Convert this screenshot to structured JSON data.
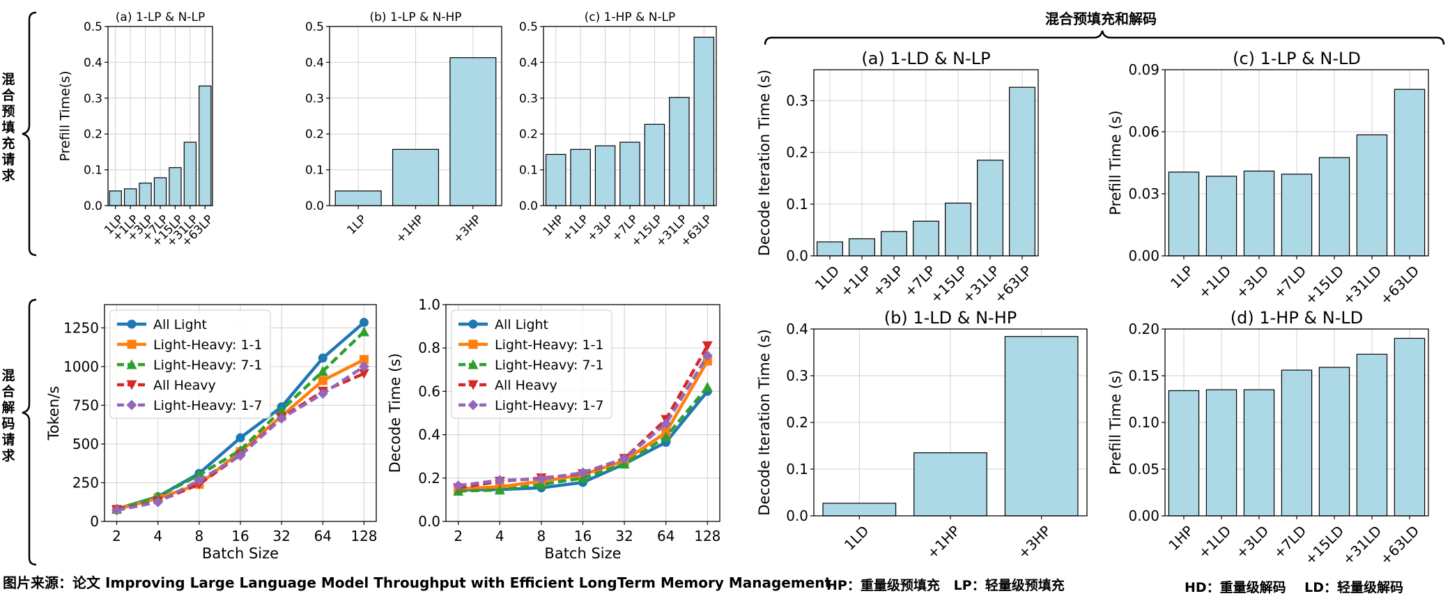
{
  "figure": {
    "source_caption": "图片来源：论文 Improving Large Language Model Throughput with Efficient LongTerm Memory Management",
    "legend_prefill": "HP：重量级预填充   LP：轻量级预填充",
    "legend_decode": "HD：重量级解码    LD：轻量级解码",
    "mixed_header": "混合预填充和解码",
    "side_label_top": "混合预填充请求",
    "side_label_bottom": "混合解码请求"
  },
  "colors": {
    "bar_fill": "#add8e6",
    "bar_edge": "#000000",
    "grid": "#d0d0d0",
    "all_light": "#1f77b4",
    "lh_1_1": "#ff7f0e",
    "lh_7_1": "#2ca02c",
    "all_heavy": "#d62728",
    "lh_1_7": "#9467bd"
  },
  "chart_data": [
    {
      "id": "p1",
      "type": "bar",
      "title": "(a) 1-LP & N-LP",
      "ylabel": "Prefill Time(s)",
      "xlabel": "",
      "categories": [
        "1LP",
        "+1LP",
        "+3LP",
        "+7LP",
        "+15LP",
        "+31LP",
        "+63LP"
      ],
      "values": [
        0.041,
        0.047,
        0.063,
        0.078,
        0.106,
        0.177,
        0.334
      ],
      "ylim": [
        0,
        0.5
      ],
      "yticks": [
        0.0,
        0.1,
        0.2,
        0.3,
        0.4,
        0.5
      ],
      "ytick_labels": [
        "0.0",
        "0.1",
        "0.2",
        "0.3",
        "0.4",
        "0.5"
      ]
    },
    {
      "id": "p2",
      "type": "bar",
      "title": "(b) 1-LP & N-HP",
      "ylabel": "",
      "xlabel": "",
      "categories": [
        "1LP",
        "+1HP",
        "+3HP"
      ],
      "values": [
        0.041,
        0.157,
        0.413
      ],
      "ylim": [
        0,
        0.5
      ],
      "yticks": [
        0.0,
        0.1,
        0.2,
        0.3,
        0.4,
        0.5
      ],
      "ytick_labels": [
        "0.0",
        "0.1",
        "0.2",
        "0.3",
        "0.4",
        "0.5"
      ]
    },
    {
      "id": "p3",
      "type": "bar",
      "title": "(c) 1-HP & N-LP",
      "ylabel": "",
      "xlabel": "",
      "categories": [
        "1HP",
        "+1LP",
        "+3LP",
        "+7LP",
        "+15LP",
        "+31LP",
        "+63LP"
      ],
      "values": [
        0.143,
        0.157,
        0.167,
        0.177,
        0.227,
        0.302,
        0.47
      ],
      "ylim": [
        0,
        0.5
      ],
      "yticks": [
        0.0,
        0.1,
        0.2,
        0.3,
        0.4,
        0.5
      ],
      "ytick_labels": [
        "0.0",
        "0.1",
        "0.2",
        "0.3",
        "0.4",
        "0.5"
      ]
    },
    {
      "id": "q1",
      "type": "line",
      "title": "",
      "ylabel": "Token/s",
      "xlabel": "Batch Size",
      "categories": [
        "2",
        "4",
        "8",
        "16",
        "32",
        "64",
        "128"
      ],
      "ylim": [
        0,
        1400
      ],
      "yticks": [
        0,
        250,
        500,
        750,
        1000,
        1250
      ],
      "ytick_labels": [
        "0",
        "250",
        "500",
        "750",
        "1000",
        "1250"
      ],
      "series": [
        {
          "name": "All Light",
          "values": [
            80,
            160,
            310,
            540,
            740,
            1055,
            1285
          ]
        },
        {
          "name": "Light-Heavy: 1-1",
          "values": [
            78,
            150,
            240,
            450,
            680,
            910,
            1045
          ]
        },
        {
          "name": "Light-Heavy: 7-1",
          "values": [
            80,
            160,
            300,
            460,
            720,
            970,
            1225
          ]
        },
        {
          "name": "All Heavy",
          "values": [
            75,
            130,
            240,
            430,
            670,
            840,
            955
          ]
        },
        {
          "name": "Light-Heavy: 1-7",
          "values": [
            72,
            125,
            265,
            425,
            665,
            825,
            1000
          ]
        }
      ]
    },
    {
      "id": "q2",
      "type": "line",
      "title": "",
      "ylabel": "Decode Time (s)",
      "xlabel": "Batch Size",
      "categories": [
        "2",
        "4",
        "8",
        "16",
        "32",
        "64",
        "128"
      ],
      "ylim": [
        0,
        1.0
      ],
      "yticks": [
        0.0,
        0.2,
        0.4,
        0.6,
        0.8,
        1.0
      ],
      "ytick_labels": [
        "0.0",
        "0.2",
        "0.4",
        "0.6",
        "0.8",
        "1.0"
      ],
      "series": [
        {
          "name": "All Light",
          "values": [
            0.145,
            0.147,
            0.155,
            0.18,
            0.265,
            0.365,
            0.6
          ]
        },
        {
          "name": "Light-Heavy: 1-1",
          "values": [
            0.15,
            0.16,
            0.185,
            0.215,
            0.28,
            0.41,
            0.74
          ]
        },
        {
          "name": "Light-Heavy: 7-1",
          "values": [
            0.14,
            0.145,
            0.17,
            0.2,
            0.265,
            0.39,
            0.62
          ]
        },
        {
          "name": "All Heavy",
          "values": [
            0.155,
            0.185,
            0.2,
            0.22,
            0.29,
            0.47,
            0.81
          ]
        },
        {
          "name": "Light-Heavy: 1-7",
          "values": [
            0.165,
            0.19,
            0.195,
            0.225,
            0.29,
            0.45,
            0.765
          ]
        }
      ]
    },
    {
      "id": "r1",
      "type": "bar",
      "title": "(a) 1-LD & N-LP",
      "ylabel": "Decode Iteration Time (s)",
      "xlabel": "",
      "categories": [
        "1LD",
        "+1LP",
        "+3LP",
        "+7LP",
        "+15LP",
        "+31LP",
        "+63LP"
      ],
      "values": [
        0.027,
        0.033,
        0.047,
        0.067,
        0.102,
        0.185,
        0.326
      ],
      "ylim": [
        0,
        0.36
      ],
      "yticks": [
        0.0,
        0.1,
        0.2,
        0.3
      ],
      "ytick_labels": [
        "0.0",
        "0.1",
        "0.2",
        "0.3"
      ]
    },
    {
      "id": "r2",
      "type": "bar",
      "title": "(c) 1-LP & N-LD",
      "ylabel": "Prefill Time (s)",
      "xlabel": "",
      "categories": [
        "1LP",
        "+1LD",
        "+3LD",
        "+7LD",
        "+15LD",
        "+31LD",
        "+63LD"
      ],
      "values": [
        0.0405,
        0.0385,
        0.041,
        0.0395,
        0.0475,
        0.0585,
        0.0805
      ],
      "ylim": [
        0,
        0.09
      ],
      "yticks": [
        0.0,
        0.03,
        0.06,
        0.09
      ],
      "ytick_labels": [
        "0.00",
        "0.03",
        "0.06",
        "0.09"
      ]
    },
    {
      "id": "r3",
      "type": "bar",
      "title": "(b) 1-LD & N-HP",
      "ylabel": "Decode Iteration Time (s)",
      "xlabel": "",
      "categories": [
        "1LD",
        "+1HP",
        "+3HP"
      ],
      "values": [
        0.027,
        0.135,
        0.384
      ],
      "ylim": [
        0,
        0.4
      ],
      "yticks": [
        0.0,
        0.1,
        0.2,
        0.3,
        0.4
      ],
      "ytick_labels": [
        "0.0",
        "0.1",
        "0.2",
        "0.3",
        "0.4"
      ]
    },
    {
      "id": "r4",
      "type": "bar",
      "title": "(d) 1-HP & N-LD",
      "ylabel": "Prefill Time (s)",
      "xlabel": "",
      "categories": [
        "1HP",
        "+1LD",
        "+3LD",
        "+7LD",
        "+15LD",
        "+31LD",
        "+63LD"
      ],
      "values": [
        0.134,
        0.135,
        0.135,
        0.156,
        0.159,
        0.173,
        0.19
      ],
      "ylim": [
        0,
        0.2
      ],
      "yticks": [
        0.0,
        0.05,
        0.1,
        0.15,
        0.2
      ],
      "ytick_labels": [
        "0.00",
        "0.05",
        "0.10",
        "0.15",
        "0.20"
      ]
    }
  ]
}
